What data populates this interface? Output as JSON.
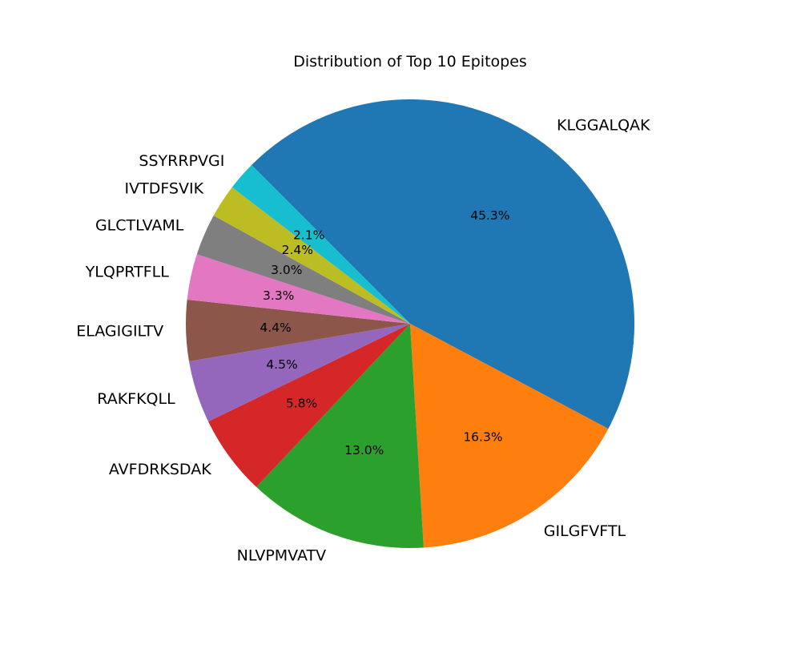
{
  "chart_data": {
    "type": "pie",
    "title": "Distribution of Top 10 Epitopes",
    "categories": [
      "KLGGALQAK",
      "GILGFVFTL",
      "NLVPMVATV",
      "AVFDRKSDAK",
      "RAKFKQLL",
      "ELAGIGILTV",
      "YLQPRTFLL",
      "GLCTLVAML",
      "IVTDFSVIK",
      "SSYRRPVGI"
    ],
    "values": [
      45.3,
      16.3,
      13.0,
      5.8,
      4.5,
      4.4,
      3.3,
      3.0,
      2.4,
      2.1
    ],
    "value_labels": [
      "45.3%",
      "16.3%",
      "13.0%",
      "5.8%",
      "4.5%",
      "4.4%",
      "3.3%",
      "3.0%",
      "2.4%",
      "2.1%"
    ],
    "colors": [
      "#1f77b4",
      "#ff7f0e",
      "#2ca02c",
      "#d62728",
      "#9467bd",
      "#8c564b",
      "#e377c2",
      "#7f7f7f",
      "#bcbd22",
      "#17becf"
    ],
    "start_angle_deg": 135,
    "direction": "clockwise"
  }
}
